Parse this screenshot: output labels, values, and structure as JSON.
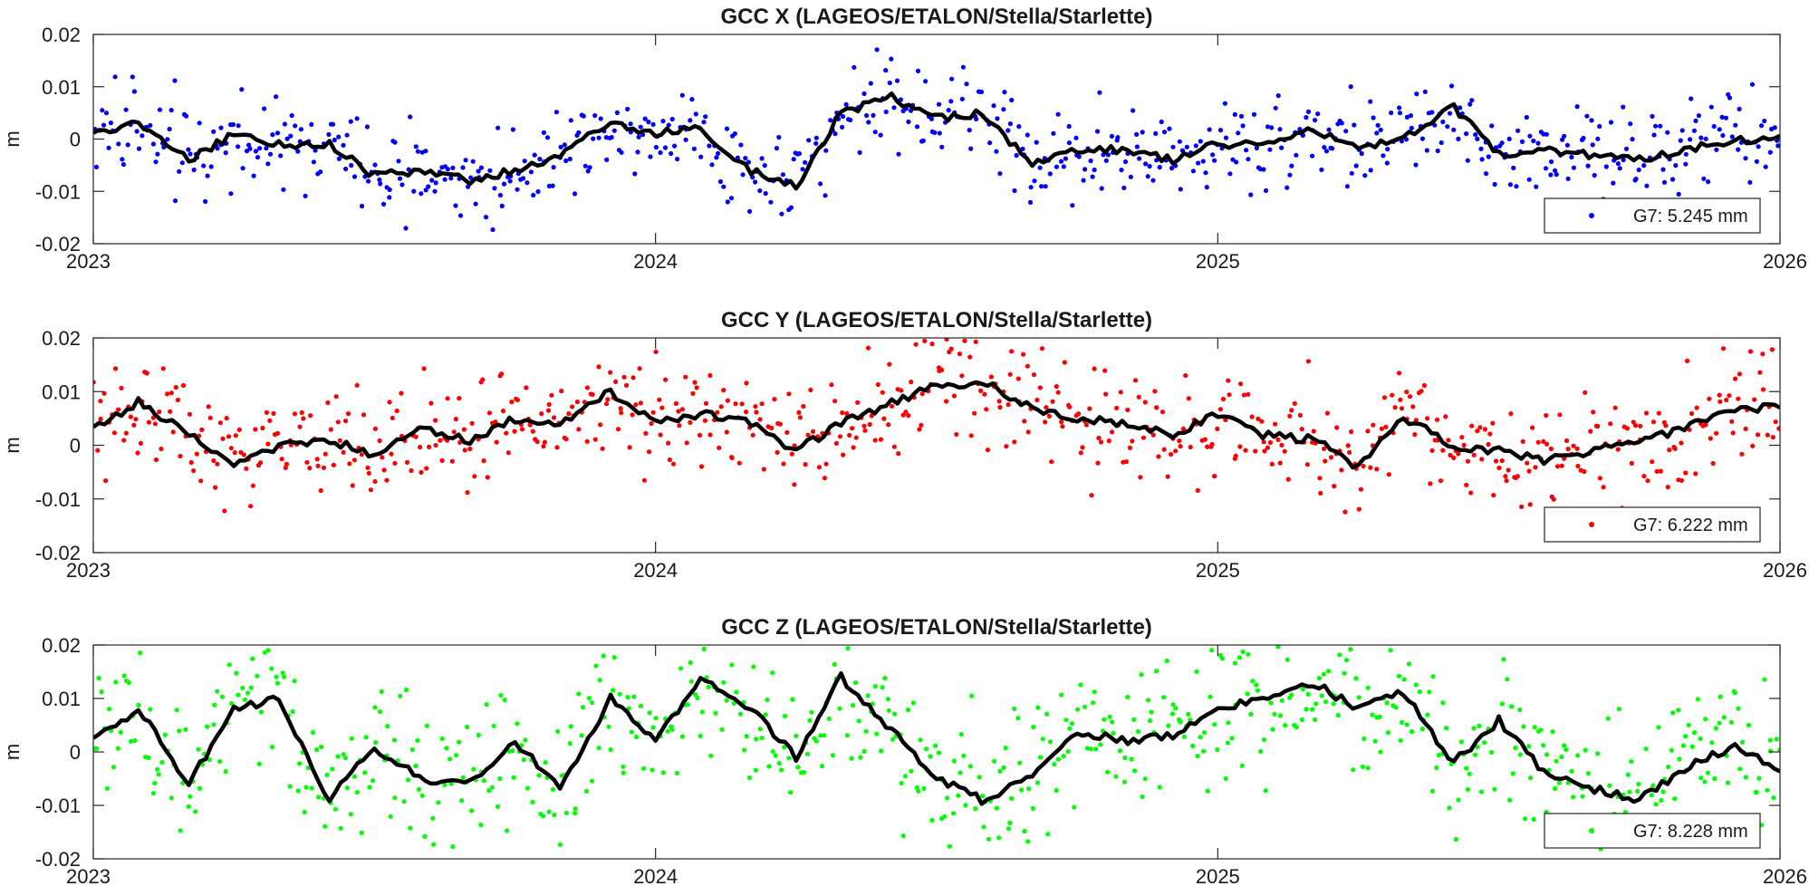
{
  "chart_data": [
    {
      "type": "scatter",
      "title": "GCC X (LAGEOS/ETALON/Stella/Starlette)",
      "xlabel": "",
      "ylabel": "m",
      "xlim": [
        2023,
        2026
      ],
      "ylim": [
        -0.02,
        0.02
      ],
      "x_ticks": [
        "2023",
        "2024",
        "2025",
        "2026"
      ],
      "y_ticks": [
        "-0.02",
        "-0.01",
        "0",
        "0.01",
        "0.02"
      ],
      "grid": false,
      "legend_position": "bottom-right",
      "series": [
        {
          "name": "G7: 5.245 mm",
          "color": "#0000ff",
          "style": "dots",
          "spread": 0.0045,
          "x": [
            2023.0,
            2023.08,
            2023.17,
            2023.25,
            2023.33,
            2023.42,
            2023.5,
            2023.58,
            2023.67,
            2023.75,
            2023.83,
            2023.92,
            2024.0,
            2024.08,
            2024.17,
            2024.25,
            2024.33,
            2024.42,
            2024.5,
            2024.58,
            2024.67,
            2024.75,
            2024.83,
            2024.92,
            2025.0,
            2025.08,
            2025.17,
            2025.25,
            2025.33,
            2025.42,
            2025.5,
            2025.58,
            2025.67,
            2025.75,
            2025.83,
            2025.92,
            2026.0
          ],
          "y": [
            0.001,
            0.003,
            -0.004,
            0.001,
            -0.001,
            -0.001,
            -0.007,
            -0.006,
            -0.008,
            -0.006,
            -0.003,
            0.003,
            0.001,
            0.002,
            -0.006,
            -0.009,
            0.005,
            0.008,
            0.004,
            0.005,
            -0.005,
            -0.002,
            -0.002,
            -0.004,
            -0.001,
            -0.001,
            0.002,
            -0.002,
            0.0,
            0.006,
            -0.003,
            -0.002,
            -0.003,
            -0.004,
            -0.002,
            0.0,
            0.0
          ]
        },
        {
          "name": "smoothed",
          "color": "#000000",
          "style": "line",
          "x": [
            2023.0,
            2023.08,
            2023.17,
            2023.25,
            2023.33,
            2023.42,
            2023.5,
            2023.58,
            2023.67,
            2023.75,
            2023.83,
            2023.92,
            2024.0,
            2024.08,
            2024.17,
            2024.25,
            2024.33,
            2024.42,
            2024.5,
            2024.58,
            2024.67,
            2024.75,
            2024.83,
            2024.92,
            2025.0,
            2025.08,
            2025.17,
            2025.25,
            2025.33,
            2025.42,
            2025.5,
            2025.58,
            2025.67,
            2025.75,
            2025.83,
            2025.92,
            2026.0
          ],
          "y": [
            0.001,
            0.003,
            -0.004,
            0.001,
            -0.001,
            -0.001,
            -0.007,
            -0.006,
            -0.008,
            -0.006,
            -0.003,
            0.003,
            0.001,
            0.002,
            -0.006,
            -0.009,
            0.005,
            0.008,
            0.004,
            0.005,
            -0.005,
            -0.002,
            -0.002,
            -0.004,
            -0.001,
            -0.001,
            0.002,
            -0.002,
            0.0,
            0.006,
            -0.003,
            -0.002,
            -0.003,
            -0.004,
            -0.002,
            0.0,
            0.0
          ]
        }
      ]
    },
    {
      "type": "scatter",
      "title": "GCC Y (LAGEOS/ETALON/Stella/Starlette)",
      "xlabel": "",
      "ylabel": "m",
      "xlim": [
        2023,
        2026
      ],
      "ylim": [
        -0.02,
        0.02
      ],
      "x_ticks": [
        "2023",
        "2024",
        "2025",
        "2026"
      ],
      "y_ticks": [
        "-0.02",
        "-0.01",
        "0",
        "0.01",
        "0.02"
      ],
      "grid": false,
      "legend_position": "bottom-right",
      "series": [
        {
          "name": "G7: 6.222 mm",
          "color": "#ff0000",
          "style": "dots",
          "spread": 0.0052,
          "x": [
            2023.0,
            2023.08,
            2023.17,
            2023.25,
            2023.33,
            2023.42,
            2023.5,
            2023.58,
            2023.67,
            2023.75,
            2023.83,
            2023.92,
            2024.0,
            2024.08,
            2024.17,
            2024.25,
            2024.33,
            2024.42,
            2024.5,
            2024.58,
            2024.67,
            2024.75,
            2024.83,
            2024.92,
            2025.0,
            2025.08,
            2025.17,
            2025.25,
            2025.33,
            2025.42,
            2025.5,
            2025.58,
            2025.67,
            2025.75,
            2025.83,
            2025.92,
            2026.0
          ],
          "y": [
            0.003,
            0.008,
            0.002,
            -0.004,
            0.0,
            0.001,
            -0.002,
            0.003,
            0.001,
            0.005,
            0.004,
            0.01,
            0.004,
            0.006,
            0.004,
            -0.001,
            0.004,
            0.008,
            0.011,
            0.012,
            0.007,
            0.005,
            0.004,
            0.002,
            0.006,
            0.002,
            0.001,
            -0.004,
            0.005,
            0.0,
            -0.001,
            -0.003,
            -0.001,
            0.001,
            0.003,
            0.007,
            0.007
          ]
        },
        {
          "name": "smoothed",
          "color": "#000000",
          "style": "line",
          "x": [
            2023.0,
            2023.08,
            2023.17,
            2023.25,
            2023.33,
            2023.42,
            2023.5,
            2023.58,
            2023.67,
            2023.75,
            2023.83,
            2023.92,
            2024.0,
            2024.08,
            2024.17,
            2024.25,
            2024.33,
            2024.42,
            2024.5,
            2024.58,
            2024.67,
            2024.75,
            2024.83,
            2024.92,
            2025.0,
            2025.08,
            2025.17,
            2025.25,
            2025.33,
            2025.42,
            2025.5,
            2025.58,
            2025.67,
            2025.75,
            2025.83,
            2025.92,
            2026.0
          ],
          "y": [
            0.003,
            0.008,
            0.002,
            -0.004,
            0.0,
            0.001,
            -0.002,
            0.003,
            0.001,
            0.005,
            0.004,
            0.01,
            0.004,
            0.006,
            0.004,
            -0.001,
            0.004,
            0.008,
            0.011,
            0.012,
            0.007,
            0.005,
            0.004,
            0.002,
            0.006,
            0.002,
            0.001,
            -0.004,
            0.005,
            0.0,
            -0.001,
            -0.003,
            -0.001,
            0.001,
            0.003,
            0.007,
            0.007
          ]
        }
      ]
    },
    {
      "type": "scatter",
      "title": "GCC Z (LAGEOS/ETALON/Stella/Starlette)",
      "xlabel": "",
      "ylabel": "m",
      "xlim": [
        2023,
        2026
      ],
      "ylim": [
        -0.02,
        0.02
      ],
      "x_ticks": [
        "2023",
        "2024",
        "2025",
        "2026"
      ],
      "y_ticks": [
        "-0.02",
        "-0.01",
        "0",
        "0.01",
        "0.02"
      ],
      "grid": false,
      "legend_position": "bottom-right",
      "series": [
        {
          "name": "G7: 8.228 mm",
          "color": "#00ff00",
          "style": "dots",
          "spread": 0.0068,
          "x": [
            2023.0,
            2023.08,
            2023.17,
            2023.25,
            2023.33,
            2023.42,
            2023.5,
            2023.58,
            2023.67,
            2023.75,
            2023.83,
            2023.92,
            2024.0,
            2024.08,
            2024.17,
            2024.25,
            2024.33,
            2024.42,
            2024.5,
            2024.58,
            2024.67,
            2024.75,
            2024.83,
            2024.92,
            2025.0,
            2025.08,
            2025.17,
            2025.25,
            2025.33,
            2025.42,
            2025.5,
            2025.58,
            2025.67,
            2025.75,
            2025.83,
            2025.92,
            2026.0
          ],
          "y": [
            0.002,
            0.008,
            -0.006,
            0.008,
            0.01,
            -0.009,
            0.001,
            -0.005,
            -0.006,
            0.002,
            -0.007,
            0.01,
            0.002,
            0.014,
            0.008,
            -0.001,
            0.014,
            0.004,
            -0.005,
            -0.009,
            -0.005,
            0.004,
            0.002,
            0.003,
            0.008,
            0.01,
            0.013,
            0.008,
            0.011,
            -0.002,
            0.006,
            -0.004,
            -0.007,
            -0.009,
            -0.003,
            0.001,
            -0.003
          ]
        },
        {
          "name": "smoothed",
          "color": "#000000",
          "style": "line",
          "x": [
            2023.0,
            2023.08,
            2023.17,
            2023.25,
            2023.33,
            2023.42,
            2023.5,
            2023.58,
            2023.67,
            2023.75,
            2023.83,
            2023.92,
            2024.0,
            2024.08,
            2024.17,
            2024.25,
            2024.33,
            2024.42,
            2024.5,
            2024.58,
            2024.67,
            2024.75,
            2024.83,
            2024.92,
            2025.0,
            2025.08,
            2025.17,
            2025.25,
            2025.33,
            2025.42,
            2025.5,
            2025.58,
            2025.67,
            2025.75,
            2025.83,
            2025.92,
            2026.0
          ],
          "y": [
            0.002,
            0.008,
            -0.006,
            0.008,
            0.01,
            -0.009,
            0.001,
            -0.005,
            -0.006,
            0.002,
            -0.007,
            0.01,
            0.002,
            0.014,
            0.008,
            -0.001,
            0.014,
            0.004,
            -0.005,
            -0.009,
            -0.005,
            0.004,
            0.002,
            0.003,
            0.008,
            0.01,
            0.013,
            0.008,
            0.011,
            -0.002,
            0.006,
            -0.004,
            -0.007,
            -0.009,
            -0.003,
            0.001,
            -0.003
          ]
        }
      ]
    }
  ]
}
